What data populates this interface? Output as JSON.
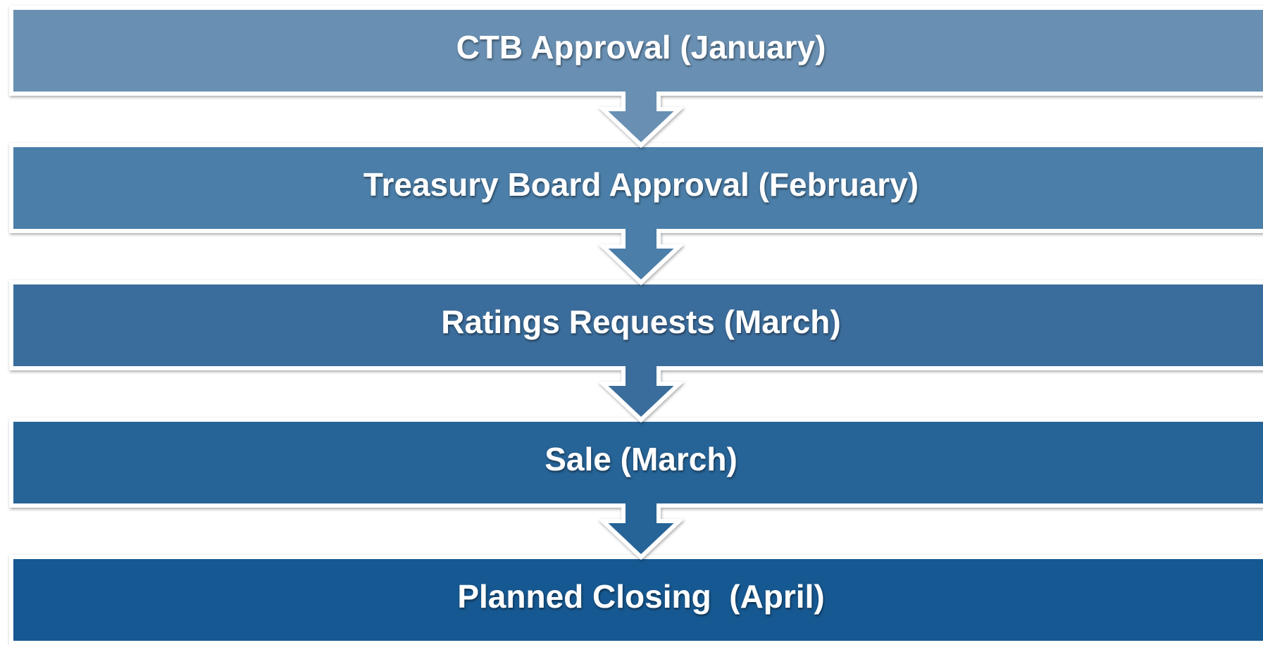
{
  "steps": [
    {
      "label": "CTB Approval (January)"
    },
    {
      "label": "Treasury Board Approval (February)"
    },
    {
      "label": "Ratings Requests (March)"
    },
    {
      "label": "Sale (March)"
    },
    {
      "label": "Planned Closing  (April)"
    }
  ]
}
